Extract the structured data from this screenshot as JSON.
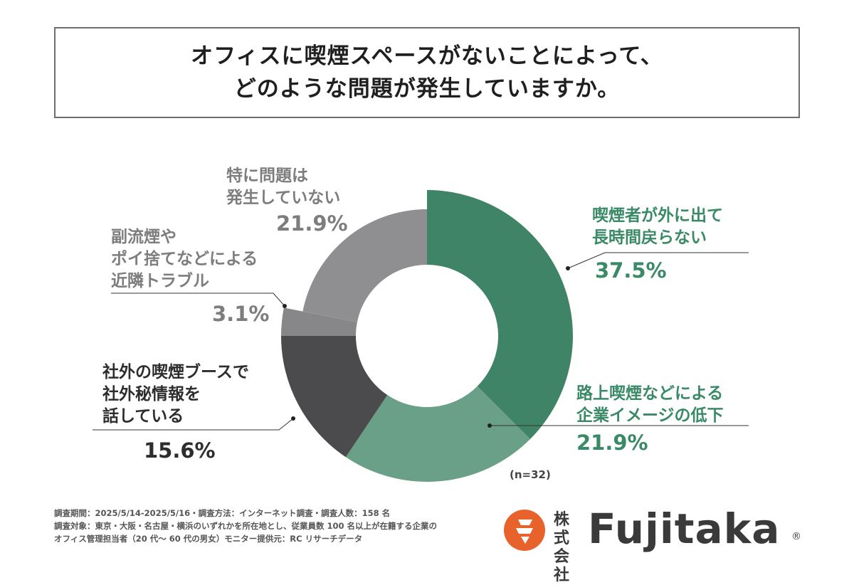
{
  "title": {
    "line1": "オフィスに喫煙スペースがないことによって、",
    "line2": "どのような問題が発生していますか。"
  },
  "colors": {
    "s1": "#3f8466",
    "s2": "#6a9f88",
    "s3": "#4b4a4d",
    "s4": "#87878a",
    "s5": "#8f8f92",
    "green_text": "#3a8a68",
    "dark_text": "#2d2d2d",
    "gray_text": "#7d7d7d"
  },
  "chart_data": {
    "type": "pie",
    "variant": "donut",
    "n_label": "(n=32)",
    "slices": [
      {
        "label_lines": [
          "喫煙者が外に出て",
          "長時間戻らない"
        ],
        "value": 37.5,
        "pct_label": "37.5%",
        "color_key": "s1",
        "text_color_key": "green_text"
      },
      {
        "label_lines": [
          "路上喫煙などによる",
          "企業イメージの低下"
        ],
        "value": 21.9,
        "pct_label": "21.9%",
        "color_key": "s2",
        "text_color_key": "green_text"
      },
      {
        "label_lines": [
          "社外の喫煙ブースで",
          "社外秘情報を",
          "話している"
        ],
        "value": 15.6,
        "pct_label": "15.6%",
        "color_key": "s3",
        "text_color_key": "dark_text"
      },
      {
        "label_lines": [
          "副流煙や",
          "ポイ捨てなどによる",
          "近隣トラブル"
        ],
        "value": 3.1,
        "pct_label": "3.1%",
        "color_key": "s4",
        "text_color_key": "gray_text"
      },
      {
        "label_lines": [
          "特に問題は",
          "発生していない"
        ],
        "value": 21.9,
        "pct_label": "21.9%",
        "color_key": "s5",
        "text_color_key": "gray_text"
      }
    ]
  },
  "footnote": {
    "line1": "調査期間：2025/5/14-2025/5/16・調査方法：インターネット調査・調査人数：158 名",
    "line2": "調査対象：東京・大阪・名古屋・横浜のいずれかを所在地とし、従業員数 100 名以上が在籍する企業の",
    "line3": "オフィス管理担当者（20 代～ 60 代の男女）モニター提供元：RC リサーチデータ"
  },
  "logo": {
    "kanji_line1": "株式",
    "kanji_line2": "会社",
    "name": "Fujitaka",
    "reg": "®",
    "mark_color": "#e8632b"
  }
}
